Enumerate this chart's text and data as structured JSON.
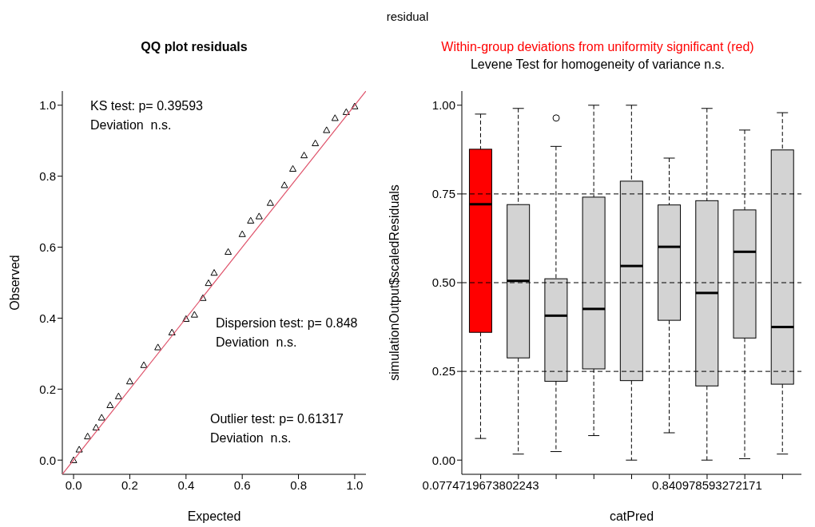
{
  "chart_data": [
    {
      "type": "scatter",
      "title": "QQ plot residuals",
      "xlabel": "Expected",
      "ylabel": "Observed",
      "xlim": [
        -0.04,
        1.04
      ],
      "ylim": [
        -0.04,
        1.04
      ],
      "xticks": [
        {
          "value": 0,
          "label": "0.0"
        },
        {
          "value": 0.2,
          "label": "0.2"
        },
        {
          "value": 0.4,
          "label": "0.4"
        },
        {
          "value": 0.6,
          "label": "0.6"
        },
        {
          "value": 0.8,
          "label": "0.8"
        },
        {
          "value": 1,
          "label": "1.0"
        }
      ],
      "yticks": [
        {
          "value": 0,
          "label": "0.0"
        },
        {
          "value": 0.2,
          "label": "0.2"
        },
        {
          "value": 0.4,
          "label": "0.4"
        },
        {
          "value": 0.6,
          "label": "0.6"
        },
        {
          "value": 0.8,
          "label": "0.8"
        },
        {
          "value": 1,
          "label": "1.0"
        }
      ],
      "annotations": [
        "residual",
        "KS test: p= 0.39593",
        "Deviation  n.s.",
        "Dispersion test: p= 0.848",
        "Deviation  n.s.",
        "Outlier test: p= 0.61317",
        "Deviation  n.s."
      ],
      "series": [
        {
          "type": "scatter",
          "color": "#000000",
          "marker": "triangle",
          "x": [
            0,
            0.02,
            0.05,
            0.08,
            0.1,
            0.13,
            0.16,
            0.2,
            0.25,
            0.3,
            0.35,
            0.4,
            0.43,
            0.46,
            0.48,
            0.5,
            0.55,
            0.6,
            0.63,
            0.66,
            0.7,
            0.75,
            0.78,
            0.82,
            0.86,
            0.9,
            0.93,
            0.97,
            1
          ],
          "values": [
            0,
            0.03,
            0.067,
            0.092,
            0.12,
            0.155,
            0.18,
            0.222,
            0.268,
            0.318,
            0.36,
            0.398,
            0.41,
            0.457,
            0.499,
            0.528,
            0.587,
            0.637,
            0.675,
            0.687,
            0.725,
            0.775,
            0.821,
            0.859,
            0.893,
            0.93,
            0.964,
            0.981,
            0.997
          ]
        },
        {
          "type": "line",
          "color": "#df536b",
          "marker": "none",
          "x": [
            -0.04,
            1.04
          ],
          "values": [
            -0.04,
            1.04
          ]
        }
      ]
    },
    {
      "type": "box",
      "title": "Within-group deviations from uniformity significant (red)",
      "subtitle": "Levene Test for homogeneity of variance n.s.",
      "xlabel": "catPred",
      "ylabel": "simulationOutput$scaledResiduals",
      "categories": [
        "0.0774719673802243",
        null,
        null,
        null,
        null,
        null,
        "0.840978593272171",
        null,
        null
      ],
      "ylim": [
        -0.04,
        1.04
      ],
      "yticks": [
        {
          "value": 0,
          "label": "0.00"
        },
        {
          "value": 0.25,
          "label": "0.25"
        },
        {
          "value": 0.5,
          "label": "0.50"
        },
        {
          "value": 0.75,
          "label": "0.75"
        },
        {
          "value": 1,
          "label": "1.00"
        }
      ],
      "colors": [
        "#ff0000",
        "#d3d3d3",
        "#d3d3d3",
        "#d3d3d3",
        "#d3d3d3",
        "#d3d3d3",
        "#d3d3d3",
        "#d3d3d3",
        "#d3d3d3"
      ],
      "boxes": [
        {
          "low": 0.061,
          "q1": 0.36,
          "median": 0.721,
          "q3": 0.876,
          "high": 0.975
        },
        {
          "low": 0.017,
          "q1": 0.288,
          "median": 0.505,
          "q3": 0.72,
          "high": 0.991
        },
        {
          "low": 0.024,
          "q1": 0.222,
          "median": 0.407,
          "q3": 0.511,
          "high": 0.884,
          "outliers": [
            0.964
          ]
        },
        {
          "low": 0.069,
          "q1": 0.257,
          "median": 0.426,
          "q3": 0.741,
          "high": 1.0
        },
        {
          "low": 0.0,
          "q1": 0.224,
          "median": 0.547,
          "q3": 0.786,
          "high": 1.0
        },
        {
          "low": 0.077,
          "q1": 0.394,
          "median": 0.601,
          "q3": 0.719,
          "high": 0.851
        },
        {
          "low": 0.0,
          "q1": 0.209,
          "median": 0.471,
          "q3": 0.731,
          "high": 0.991
        },
        {
          "low": 0.004,
          "q1": 0.344,
          "median": 0.587,
          "q3": 0.705,
          "high": 0.93
        },
        {
          "low": 0.017,
          "q1": 0.214,
          "median": 0.375,
          "q3": 0.874,
          "high": 0.979
        }
      ],
      "ref_lines": [
        {
          "axis": "y",
          "value": 0.25,
          "line_style": "dashed"
        },
        {
          "axis": "y",
          "value": 0.5,
          "line_style": "dashed"
        },
        {
          "axis": "y",
          "value": 0.75,
          "line_style": "dashed"
        }
      ]
    }
  ]
}
